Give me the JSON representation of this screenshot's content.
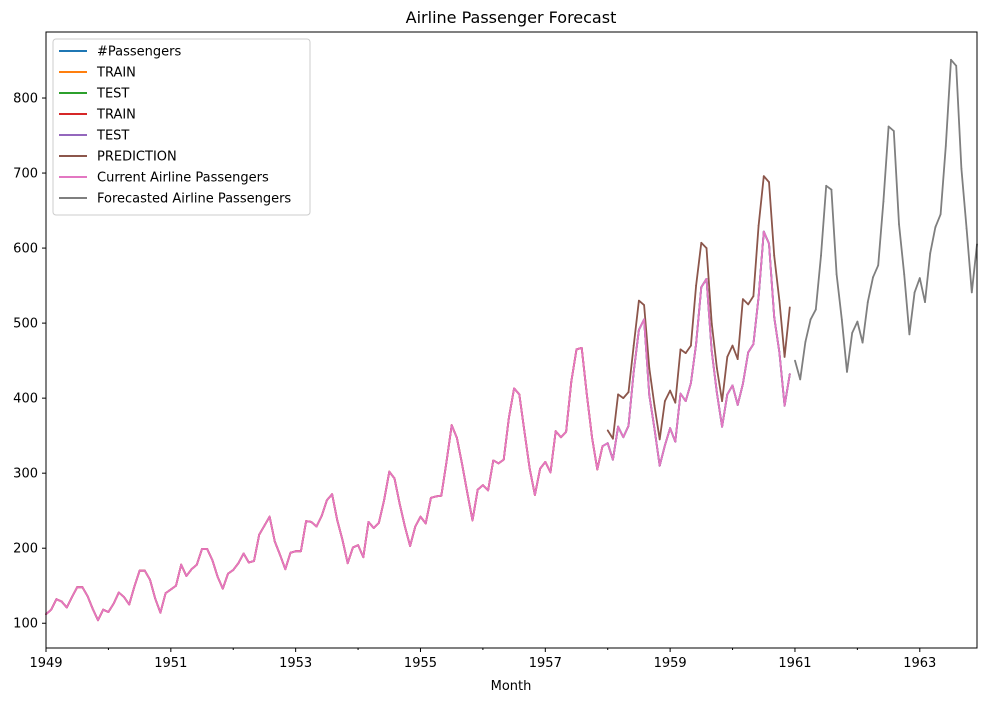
{
  "chart_data": {
    "type": "line",
    "title": "Airline Passenger Forecast",
    "xlabel": "Month",
    "ylabel": "",
    "xlim": [
      "1949-01",
      "1963-12"
    ],
    "ylim": [
      67,
      888
    ],
    "grid": false,
    "legend_placement": "top-left",
    "x_tick_labels": [
      "1949",
      "1951",
      "1953",
      "1955",
      "1957",
      "1959",
      "1961",
      "1963"
    ],
    "y_ticks": [
      100,
      200,
      300,
      400,
      500,
      600,
      700,
      800
    ],
    "colors": {
      "#Passengers": "#1f77b4",
      "TRAIN": "#ff7f0e",
      "TEST": "#2ca02c",
      "TRAIN_2": "#d62728",
      "TEST_2": "#9467bd",
      "PREDICTION": "#8c564b",
      "Current Airline Passengers": "#e377c2",
      "Forecasted Airline Passengers": "#7f7f7f"
    },
    "series": [
      {
        "name": "#Passengers",
        "color": "#1f77b4",
        "start": "1949-01",
        "values": [
          112,
          118,
          132,
          129,
          121,
          135,
          148,
          148,
          136,
          119,
          104,
          118,
          115,
          126,
          141,
          135,
          125,
          149,
          170,
          170,
          158,
          133,
          114,
          140,
          145,
          150,
          178,
          163,
          172,
          178,
          199,
          199,
          184,
          162,
          146,
          166,
          171,
          180,
          193,
          181,
          183,
          218,
          230,
          242,
          209,
          191,
          172,
          194,
          196,
          196,
          236,
          235,
          229,
          243,
          264,
          272,
          237,
          211,
          180,
          201,
          204,
          188,
          235,
          227,
          234,
          264,
          302,
          293,
          259,
          229,
          203,
          229,
          242,
          233,
          267,
          269,
          270,
          315,
          364,
          347,
          312,
          274,
          237,
          278,
          284,
          277,
          317,
          313,
          318,
          374,
          413,
          405,
          355,
          306,
          271,
          306,
          315,
          301,
          356,
          348,
          355,
          422,
          465,
          467,
          404,
          347,
          305,
          336,
          340,
          318,
          362,
          348,
          363,
          435,
          491,
          505,
          404,
          359,
          310,
          337,
          360,
          342,
          406,
          396,
          420,
          472,
          548,
          559,
          463,
          407,
          362,
          405,
          417,
          391,
          419,
          461,
          472,
          535,
          622,
          606,
          508,
          461,
          390,
          432
        ]
      },
      {
        "name": "TRAIN",
        "color": "#ff7f0e",
        "start": "1949-01",
        "values": [
          112,
          118,
          132,
          129,
          121,
          135,
          148,
          148,
          136,
          119,
          104,
          118,
          115,
          126,
          141,
          135,
          125,
          149,
          170,
          170,
          158,
          133,
          114,
          140,
          145,
          150,
          178,
          163,
          172,
          178,
          199,
          199,
          184,
          162,
          146,
          166,
          171,
          180,
          193,
          181,
          183,
          218,
          230,
          242,
          209,
          191,
          172,
          194,
          196,
          196,
          236,
          235,
          229,
          243,
          264,
          272,
          237,
          211,
          180,
          201,
          204,
          188,
          235,
          227,
          234,
          264,
          302,
          293,
          259,
          229,
          203,
          229,
          242,
          233,
          267,
          269,
          270,
          315,
          364,
          347,
          312,
          274,
          237,
          278,
          284,
          277,
          317,
          313,
          318,
          374,
          413,
          405,
          355,
          306,
          271,
          306,
          315,
          301,
          356,
          348,
          355,
          422,
          465,
          467,
          404,
          347,
          305,
          336
        ]
      },
      {
        "name": "TEST",
        "color": "#2ca02c",
        "start": "1958-01",
        "values": [
          340,
          318,
          362,
          348,
          363,
          435,
          491,
          505,
          404,
          359,
          310,
          337,
          360,
          342,
          406,
          396,
          420,
          472,
          548,
          559,
          463,
          407,
          362,
          405,
          417,
          391,
          419,
          461,
          472,
          535,
          622,
          606,
          508,
          461,
          390,
          432
        ]
      },
      {
        "name": "TRAIN",
        "color": "#d62728",
        "start": "1949-01",
        "values": [
          112,
          118,
          132,
          129,
          121,
          135,
          148,
          148,
          136,
          119,
          104,
          118,
          115,
          126,
          141,
          135,
          125,
          149,
          170,
          170,
          158,
          133,
          114,
          140,
          145,
          150,
          178,
          163,
          172,
          178,
          199,
          199,
          184,
          162,
          146,
          166,
          171,
          180,
          193,
          181,
          183,
          218,
          230,
          242,
          209,
          191,
          172,
          194,
          196,
          196,
          236,
          235,
          229,
          243,
          264,
          272,
          237,
          211,
          180,
          201,
          204,
          188,
          235,
          227,
          234,
          264,
          302,
          293,
          259,
          229,
          203,
          229,
          242,
          233,
          267,
          269,
          270,
          315,
          364,
          347,
          312,
          274,
          237,
          278,
          284,
          277,
          317,
          313,
          318,
          374,
          413,
          405,
          355,
          306,
          271,
          306,
          315,
          301,
          356,
          348,
          355,
          422,
          465,
          467,
          404,
          347,
          305,
          336
        ]
      },
      {
        "name": "TEST",
        "color": "#9467bd",
        "start": "1958-01",
        "values": [
          340,
          318,
          362,
          348,
          363,
          435,
          491,
          505,
          404,
          359,
          310,
          337,
          360,
          342,
          406,
          396,
          420,
          472,
          548,
          559,
          463,
          407,
          362,
          405,
          417,
          391,
          419,
          461,
          472,
          535,
          622,
          606,
          508,
          461,
          390,
          432
        ]
      },
      {
        "name": "PREDICTION",
        "color": "#8c564b",
        "start": "1958-01",
        "values": [
          357,
          346,
          405,
          400,
          408,
          470,
          530,
          524,
          440,
          390,
          345,
          396,
          410,
          394,
          465,
          460,
          470,
          550,
          607,
          600,
          500,
          440,
          396,
          455,
          470,
          452,
          532,
          525,
          536,
          630,
          696,
          688,
          590,
          530,
          455,
          521
        ]
      },
      {
        "name": "Current Airline Passengers",
        "color": "#e377c2",
        "start": "1949-01",
        "values": [
          112,
          118,
          132,
          129,
          121,
          135,
          148,
          148,
          136,
          119,
          104,
          118,
          115,
          126,
          141,
          135,
          125,
          149,
          170,
          170,
          158,
          133,
          114,
          140,
          145,
          150,
          178,
          163,
          172,
          178,
          199,
          199,
          184,
          162,
          146,
          166,
          171,
          180,
          193,
          181,
          183,
          218,
          230,
          242,
          209,
          191,
          172,
          194,
          196,
          196,
          236,
          235,
          229,
          243,
          264,
          272,
          237,
          211,
          180,
          201,
          204,
          188,
          235,
          227,
          234,
          264,
          302,
          293,
          259,
          229,
          203,
          229,
          242,
          233,
          267,
          269,
          270,
          315,
          364,
          347,
          312,
          274,
          237,
          278,
          284,
          277,
          317,
          313,
          318,
          374,
          413,
          405,
          355,
          306,
          271,
          306,
          315,
          301,
          356,
          348,
          355,
          422,
          465,
          467,
          404,
          347,
          305,
          336,
          340,
          318,
          362,
          348,
          363,
          435,
          491,
          505,
          404,
          359,
          310,
          337,
          360,
          342,
          406,
          396,
          420,
          472,
          548,
          559,
          463,
          407,
          362,
          405,
          417,
          391,
          419,
          461,
          472,
          535,
          622,
          606,
          508,
          461,
          390,
          432
        ]
      },
      {
        "name": "Forecasted Airline Passengers",
        "color": "#7f7f7f",
        "start": "1961-01",
        "values": [
          450,
          425,
          475,
          505,
          518,
          590,
          683,
          678,
          565,
          505,
          435,
          487,
          502,
          474,
          528,
          561,
          577,
          662,
          762,
          756,
          632,
          565,
          485,
          541,
          560,
          528,
          593,
          628,
          645,
          736,
          851,
          843,
          706,
          626,
          541,
          605
        ]
      }
    ]
  }
}
